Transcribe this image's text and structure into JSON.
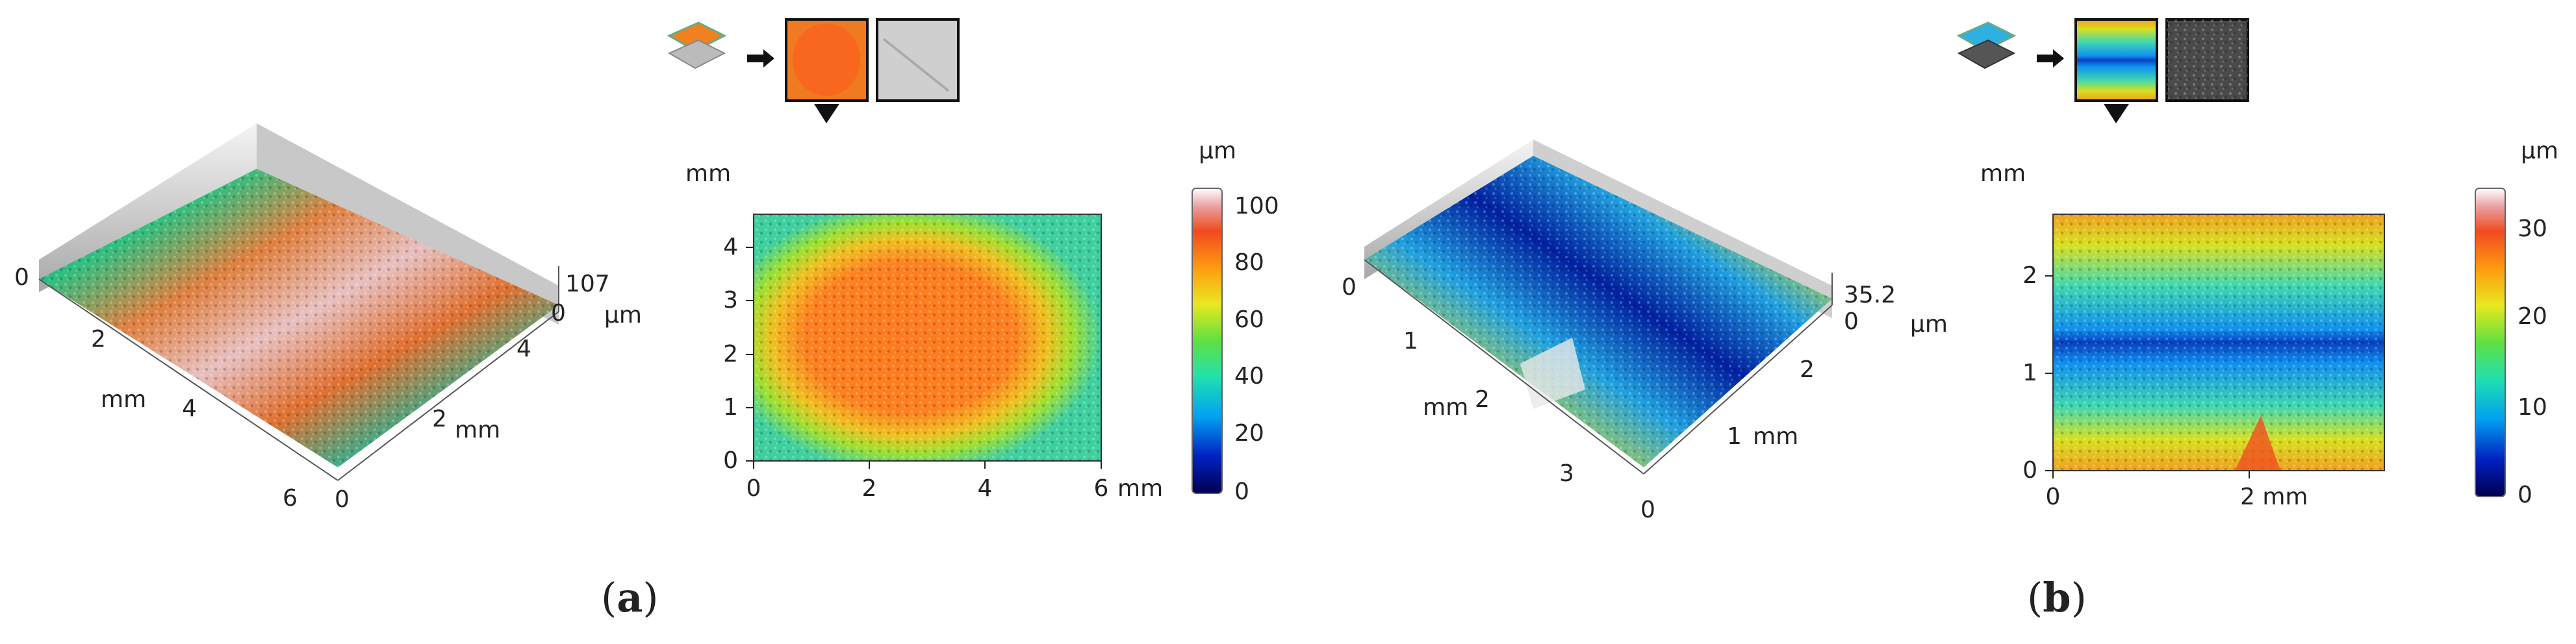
{
  "panel_a": {
    "label": "a",
    "surface_3d": {
      "x_ticks": [
        "0",
        "2",
        "4",
        "6"
      ],
      "x_unit": "mm",
      "y_ticks": [
        "0",
        "2",
        "4"
      ],
      "y_unit": "mm",
      "z_max": "107",
      "z_min": "0",
      "z_unit": "µm"
    },
    "map_2d": {
      "y_unit": "mm",
      "y_ticks": [
        "0",
        "1",
        "2",
        "3",
        "4"
      ],
      "x_ticks": [
        "0",
        "2",
        "4",
        "6"
      ],
      "x_unit": "mm",
      "colorbar_unit": "µm",
      "colorbar_ticks": [
        "0",
        "20",
        "40",
        "60",
        "80",
        "100"
      ]
    }
  },
  "panel_b": {
    "label": "b",
    "surface_3d": {
      "x_ticks": [
        "0",
        "1",
        "2",
        "3"
      ],
      "x_unit": "mm",
      "y_ticks": [
        "0",
        "1",
        "2"
      ],
      "y_unit": "mm",
      "z_max": "35.2",
      "z_min": "0",
      "z_unit": "µm"
    },
    "map_2d": {
      "y_unit": "mm",
      "y_ticks": [
        "0",
        "1",
        "2"
      ],
      "x_ticks": [
        "0",
        "2 mm"
      ],
      "colorbar_unit": "µm",
      "colorbar_ticks": [
        "0",
        "10",
        "20",
        "30"
      ]
    }
  },
  "colormap": [
    "#000060",
    "#0030d0",
    "#00a0f0",
    "#30e0a0",
    "#80e030",
    "#f0e020",
    "#ff9010",
    "#f04020",
    "#e0a0a0",
    "#ffffff"
  ]
}
